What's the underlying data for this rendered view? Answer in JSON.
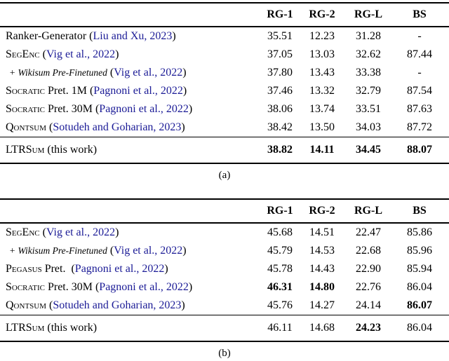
{
  "colors": {
    "citation_blue": "#1b1b96",
    "text": "#000000",
    "rule": "#000000",
    "background": "#ffffff"
  },
  "columns": [
    "RG-1",
    "RG-2",
    "RG-L",
    "BS"
  ],
  "tables": [
    {
      "caption": "(a)",
      "rows": [
        {
          "indent": false,
          "label_parts": [
            {
              "t": "Ranker-Generator ("
            },
            {
              "t": "Liu and Xu, 2023",
              "cite": true
            },
            {
              "t": ")"
            }
          ],
          "values": [
            {
              "t": "35.51",
              "b": false
            },
            {
              "t": "12.23",
              "b": false
            },
            {
              "t": "31.28",
              "b": false
            },
            {
              "t": "-",
              "b": false
            }
          ]
        },
        {
          "indent": false,
          "label_parts": [
            {
              "t": "SegEnc",
              "sc": true
            },
            {
              "t": " ("
            },
            {
              "t": "Vig et al., 2022",
              "cite": true
            },
            {
              "t": ")"
            }
          ],
          "values": [
            {
              "t": "37.05",
              "b": false
            },
            {
              "t": "13.03",
              "b": false
            },
            {
              "t": "32.62",
              "b": false
            },
            {
              "t": "87.44",
              "b": false
            }
          ]
        },
        {
          "indent": true,
          "label_parts": [
            {
              "t": "+ Wikisum Pre-Finetuned",
              "it": true
            },
            {
              "t": " ("
            },
            {
              "t": "Vig et al., 2022",
              "cite": true
            },
            {
              "t": ")"
            }
          ],
          "values": [
            {
              "t": "37.80",
              "b": false
            },
            {
              "t": "13.43",
              "b": false
            },
            {
              "t": "33.38",
              "b": false
            },
            {
              "t": "-",
              "b": false
            }
          ]
        },
        {
          "indent": false,
          "label_parts": [
            {
              "t": "Socratic",
              "sc": true
            },
            {
              "t": " Pret. 1M ("
            },
            {
              "t": "Pagnoni et al., 2022",
              "cite": true
            },
            {
              "t": ")"
            }
          ],
          "values": [
            {
              "t": "37.46",
              "b": false
            },
            {
              "t": "13.32",
              "b": false
            },
            {
              "t": "32.79",
              "b": false
            },
            {
              "t": "87.54",
              "b": false
            }
          ]
        },
        {
          "indent": false,
          "label_parts": [
            {
              "t": "Socratic",
              "sc": true
            },
            {
              "t": " Pret. 30M ("
            },
            {
              "t": "Pagnoni et al., 2022",
              "cite": true
            },
            {
              "t": ")"
            }
          ],
          "values": [
            {
              "t": "38.06",
              "b": false
            },
            {
              "t": "13.74",
              "b": false
            },
            {
              "t": "33.51",
              "b": false
            },
            {
              "t": "87.63",
              "b": false
            }
          ]
        },
        {
          "indent": false,
          "label_parts": [
            {
              "t": "Qontsum",
              "sc": true
            },
            {
              "t": " ("
            },
            {
              "t": "Sotudeh and Goharian, 2023",
              "cite": true
            },
            {
              "t": ")"
            }
          ],
          "values": [
            {
              "t": "38.42",
              "b": false
            },
            {
              "t": "13.50",
              "b": false
            },
            {
              "t": "34.03",
              "b": false
            },
            {
              "t": "87.72",
              "b": false
            }
          ]
        }
      ],
      "final_row": {
        "indent": false,
        "label_parts": [
          {
            "t": "LTRSum",
            "sc": true
          },
          {
            "t": " (this work)"
          }
        ],
        "values": [
          {
            "t": "38.82",
            "b": true
          },
          {
            "t": "14.11",
            "b": true
          },
          {
            "t": "34.45",
            "b": true
          },
          {
            "t": "88.07",
            "b": true
          }
        ]
      }
    },
    {
      "caption": "(b)",
      "rows": [
        {
          "indent": false,
          "label_parts": [
            {
              "t": "SegEnc",
              "sc": true
            },
            {
              "t": " ("
            },
            {
              "t": "Vig et al., 2022",
              "cite": true
            },
            {
              "t": ")"
            }
          ],
          "values": [
            {
              "t": "45.68",
              "b": false
            },
            {
              "t": "14.51",
              "b": false
            },
            {
              "t": "22.47",
              "b": false
            },
            {
              "t": "85.86",
              "b": false
            }
          ]
        },
        {
          "indent": true,
          "label_parts": [
            {
              "t": "+ Wikisum Pre-Finetuned",
              "it": true
            },
            {
              "t": " ("
            },
            {
              "t": "Vig et al., 2022",
              "cite": true
            },
            {
              "t": ")"
            }
          ],
          "values": [
            {
              "t": "45.79",
              "b": false
            },
            {
              "t": "14.53",
              "b": false
            },
            {
              "t": "22.68",
              "b": false
            },
            {
              "t": "85.96",
              "b": false
            }
          ]
        },
        {
          "indent": false,
          "label_parts": [
            {
              "t": "Pegasus",
              "sc": true
            },
            {
              "t": " Pret.  ("
            },
            {
              "t": "Pagnoni et al., 2022",
              "cite": true
            },
            {
              "t": ")"
            }
          ],
          "values": [
            {
              "t": "45.78",
              "b": false
            },
            {
              "t": "14.43",
              "b": false
            },
            {
              "t": "22.90",
              "b": false
            },
            {
              "t": "85.94",
              "b": false
            }
          ]
        },
        {
          "indent": false,
          "label_parts": [
            {
              "t": "Socratic",
              "sc": true
            },
            {
              "t": " Pret. 30M ("
            },
            {
              "t": "Pagnoni et al., 2022",
              "cite": true
            },
            {
              "t": ")"
            }
          ],
          "values": [
            {
              "t": "46.31",
              "b": true
            },
            {
              "t": "14.80",
              "b": true
            },
            {
              "t": "22.76",
              "b": false
            },
            {
              "t": "86.04",
              "b": false
            }
          ]
        },
        {
          "indent": false,
          "label_parts": [
            {
              "t": "Qontsum",
              "sc": true
            },
            {
              "t": " ("
            },
            {
              "t": "Sotudeh and Goharian, 2023",
              "cite": true
            },
            {
              "t": ")"
            }
          ],
          "values": [
            {
              "t": "45.76",
              "b": false
            },
            {
              "t": "14.27",
              "b": false
            },
            {
              "t": "24.14",
              "b": false
            },
            {
              "t": "86.07",
              "b": true
            }
          ]
        }
      ],
      "final_row": {
        "indent": false,
        "label_parts": [
          {
            "t": "LTRSum",
            "sc": true
          },
          {
            "t": " (this work)"
          }
        ],
        "values": [
          {
            "t": "46.11",
            "b": false
          },
          {
            "t": "14.68",
            "b": false
          },
          {
            "t": "24.23",
            "b": true
          },
          {
            "t": "86.04",
            "b": false
          }
        ]
      }
    }
  ]
}
